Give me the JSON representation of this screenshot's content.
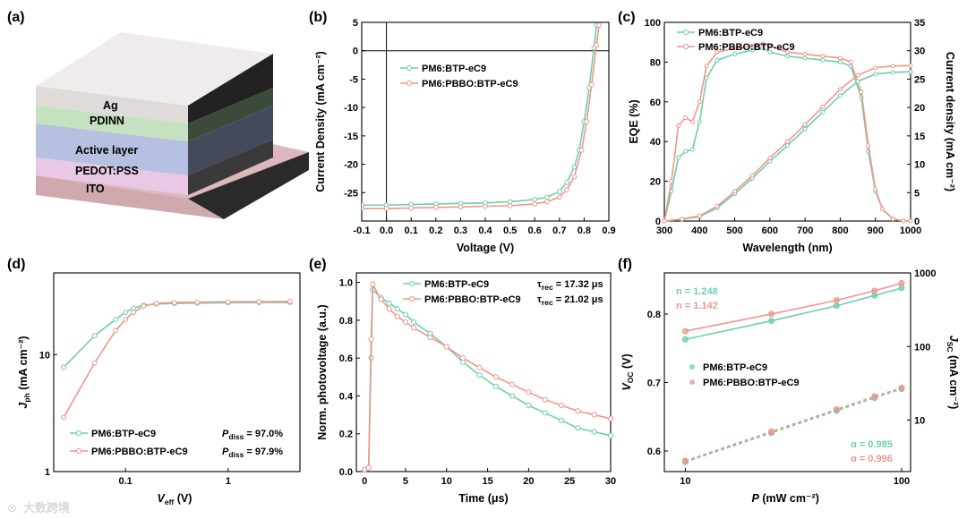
{
  "colors": {
    "green": "#6ccfae",
    "pink": "#f0968c"
  },
  "watermark": "大数跨境",
  "panels": {
    "a": {
      "tag": "(a)",
      "layers": [
        "Ag",
        "PDINN",
        "Active layer",
        "PEDOT:PSS",
        "ITO"
      ]
    },
    "b": {
      "tag": "(b)"
    },
    "c": {
      "tag": "(c)"
    },
    "d": {
      "tag": "(d)",
      "pdiss_green": "= 97.0%",
      "pdiss_pink": "= 97.9%",
      "pdiss_symbol": "P",
      "pdiss_sub": "diss"
    },
    "e": {
      "tag": "(e)",
      "tau_symbol": "τ",
      "tau_sub": "rec",
      "tau_green": "= 17.32 μs",
      "tau_pink": "= 21.02 μs"
    },
    "f": {
      "tag": "(f)",
      "n_green": "n = 1.248",
      "n_pink": "n = 1.142",
      "alpha_green": "α = 0.985",
      "alpha_pink": "α = 0.996"
    }
  },
  "chart_data": [
    {
      "id": "b",
      "type": "line",
      "xlabel": "Voltage (V)",
      "ylabel": "Current Density (mA cm⁻²)",
      "xlim": [
        -0.1,
        0.9
      ],
      "ylim": [
        -30,
        5
      ],
      "xticks": [
        "-0.1",
        "0.0",
        "0.1",
        "0.2",
        "0.3",
        "0.4",
        "0.5",
        "0.6",
        "0.7",
        "0.8",
        "0.9"
      ],
      "yticks": [
        "5",
        "0",
        "-5",
        "-10",
        "-15",
        "-20",
        "-25"
      ],
      "series": [
        {
          "name": "PM6:BTP-eC9",
          "color": "green",
          "x": [
            -0.1,
            0.0,
            0.1,
            0.2,
            0.3,
            0.4,
            0.5,
            0.6,
            0.65,
            0.7,
            0.73,
            0.76,
            0.78,
            0.8,
            0.82,
            0.84,
            0.85
          ],
          "y": [
            -27.2,
            -27.2,
            -27.1,
            -27.0,
            -26.9,
            -26.8,
            -26.6,
            -26.2,
            -25.8,
            -24.8,
            -23.2,
            -20.5,
            -17.5,
            -12.5,
            -6.5,
            0.5,
            4.5
          ]
        },
        {
          "name": "PM6:PBBO:BTP-eC9",
          "color": "pink",
          "x": [
            -0.1,
            0.0,
            0.1,
            0.2,
            0.3,
            0.4,
            0.5,
            0.6,
            0.65,
            0.7,
            0.73,
            0.76,
            0.79,
            0.81,
            0.83,
            0.85,
            0.86
          ],
          "y": [
            -27.8,
            -27.8,
            -27.7,
            -27.6,
            -27.5,
            -27.4,
            -27.3,
            -27.0,
            -26.6,
            -25.8,
            -24.5,
            -22.2,
            -17.5,
            -12.5,
            -6.0,
            1.0,
            4.5
          ]
        }
      ]
    },
    {
      "id": "c",
      "type": "line",
      "xlabel": "Wavelength (nm)",
      "ylabel": "EQE (%)",
      "ylabel_right": "Current density (mA cm⁻²)",
      "xlim": [
        300,
        1000
      ],
      "ylim": [
        0,
        100
      ],
      "ylim_right": [
        0,
        35
      ],
      "xticks": [
        "300",
        "400",
        "500",
        "600",
        "700",
        "800",
        "900",
        "1000"
      ],
      "yticks": [
        "0",
        "20",
        "40",
        "60",
        "80",
        "100"
      ],
      "yticks_right": [
        "0",
        "5",
        "10",
        "15",
        "20",
        "25",
        "30",
        "35"
      ],
      "series": [
        {
          "name": "PM6:BTP-eC9",
          "color": "green",
          "x": [
            300,
            320,
            340,
            360,
            380,
            400,
            420,
            450,
            500,
            550,
            580,
            600,
            650,
            700,
            750,
            800,
            830,
            860,
            880,
            900,
            920,
            950,
            980,
            1000
          ],
          "y": [
            0,
            15,
            32,
            35,
            36,
            50,
            72,
            81,
            84,
            86,
            87,
            85,
            83,
            82,
            81,
            80,
            78,
            62,
            35,
            15,
            6,
            1,
            0,
            0
          ]
        },
        {
          "name": "PM6:PBBO:BTP-eC9",
          "color": "pink",
          "x": [
            300,
            320,
            340,
            360,
            380,
            400,
            420,
            450,
            500,
            550,
            580,
            600,
            650,
            700,
            750,
            800,
            830,
            860,
            880,
            900,
            920,
            950,
            980,
            1000
          ],
          "y": [
            0,
            20,
            48,
            52,
            50,
            60,
            78,
            85,
            87,
            88,
            89,
            88,
            85,
            84,
            83,
            82,
            80,
            65,
            38,
            16,
            6,
            1,
            0,
            0
          ]
        },
        {
          "name": "PM6:BTP-eC9 Jsc integral",
          "color": "green",
          "axis": "right",
          "x": [
            300,
            350,
            400,
            450,
            500,
            550,
            600,
            650,
            700,
            750,
            800,
            850,
            900,
            950,
            1000
          ],
          "y": [
            0,
            0.3,
            0.8,
            2.3,
            4.8,
            7.5,
            10.5,
            13.3,
            16.2,
            19.2,
            22.1,
            24.6,
            25.9,
            26.2,
            26.3
          ]
        },
        {
          "name": "PM6:PBBO:BTP-eC9 Jsc integral",
          "color": "pink",
          "axis": "right",
          "x": [
            300,
            350,
            400,
            450,
            500,
            550,
            600,
            650,
            700,
            750,
            800,
            850,
            900,
            950,
            1000
          ],
          "y": [
            0,
            0.35,
            0.9,
            2.6,
            5.2,
            8.0,
            11.1,
            14.0,
            17.0,
            20.1,
            23.2,
            25.7,
            27.0,
            27.3,
            27.4
          ]
        }
      ]
    },
    {
      "id": "d",
      "type": "line",
      "xlabel_symbol": "V",
      "xlabel_sub": "eff",
      "xlabel_unit": " (V)",
      "ylabel_symbol": "J",
      "ylabel_sub": "ph",
      "ylabel_unit": " (mA cm⁻²)",
      "xscale": "log",
      "yscale": "log",
      "xlim": [
        0.02,
        5
      ],
      "ylim": [
        1,
        50
      ],
      "xticks": [
        "0.1",
        "1"
      ],
      "yticks": [
        "1",
        "10"
      ],
      "series": [
        {
          "name": "PM6:BTP-eC9",
          "color": "green",
          "x": [
            0.025,
            0.05,
            0.08,
            0.1,
            0.12,
            0.15,
            0.2,
            0.3,
            0.5,
            1,
            2,
            4
          ],
          "y": [
            7.8,
            14.5,
            20,
            23,
            25,
            26.5,
            27.1,
            27.4,
            27.6,
            27.8,
            27.9,
            28
          ]
        },
        {
          "name": "PM6:PBBO:BTP-eC9",
          "color": "pink",
          "x": [
            0.025,
            0.05,
            0.08,
            0.1,
            0.12,
            0.15,
            0.2,
            0.3,
            0.5,
            1,
            2,
            4
          ],
          "y": [
            2.9,
            8.5,
            16,
            20,
            23,
            26,
            27.5,
            27.9,
            28.1,
            28.3,
            28.4,
            28.5
          ]
        }
      ]
    },
    {
      "id": "e",
      "type": "line",
      "xlabel": "Time (μs)",
      "ylabel": "Norm. photovoltage (a.u.)",
      "xlim": [
        -1,
        30
      ],
      "ylim": [
        0,
        1.05
      ],
      "xticks": [
        "0",
        "5",
        "10",
        "15",
        "20",
        "25",
        "30"
      ],
      "yticks": [
        "0.0",
        "0.2",
        "0.4",
        "0.6",
        "0.8",
        "1.0"
      ],
      "series": [
        {
          "name": "PM6:BTP-eC9",
          "color": "green",
          "x": [
            0,
            0.5,
            0.8,
            1,
            2,
            3,
            4,
            5,
            6,
            8,
            10,
            12,
            14,
            16,
            18,
            20,
            22,
            24,
            26,
            28,
            30
          ],
          "y": [
            0.01,
            0.02,
            0.6,
            0.96,
            0.92,
            0.89,
            0.86,
            0.83,
            0.79,
            0.73,
            0.66,
            0.58,
            0.51,
            0.45,
            0.4,
            0.35,
            0.31,
            0.27,
            0.23,
            0.21,
            0.19
          ]
        },
        {
          "name": "PM6:PBBO:BTP-eC9",
          "color": "pink",
          "x": [
            0,
            0.5,
            0.8,
            1,
            2,
            3,
            4,
            5,
            6,
            8,
            10,
            12,
            14,
            16,
            18,
            20,
            22,
            24,
            26,
            28,
            30
          ],
          "y": [
            0.01,
            0.02,
            0.7,
            0.99,
            0.91,
            0.86,
            0.82,
            0.79,
            0.76,
            0.71,
            0.66,
            0.6,
            0.55,
            0.5,
            0.46,
            0.42,
            0.38,
            0.35,
            0.32,
            0.3,
            0.28
          ]
        }
      ]
    },
    {
      "id": "f",
      "type": "scatter",
      "xlabel_symbol": "P",
      "xlabel_unit": " (mW cm⁻²)",
      "ylabel_symbol": "V",
      "ylabel_sub": "OC",
      "ylabel_unit": " (V)",
      "ylabel_right_symbol": "J",
      "ylabel_right_sub": "SC",
      "ylabel_right_unit": " (mA cm⁻²)",
      "xscale": "log",
      "xlim": [
        8,
        110
      ],
      "ylim": [
        0.57,
        0.86
      ],
      "yscale_right": "log",
      "ylim_right": [
        2,
        1000
      ],
      "xticks": [
        "10",
        "100"
      ],
      "yticks": [
        "0.6",
        "0.7",
        "0.8"
      ],
      "yticks_right": [
        "10",
        "100",
        "1000"
      ],
      "series": [
        {
          "name": "PM6:BTP-eC9",
          "color": "green",
          "kind": "voc",
          "x": [
            10,
            25,
            50,
            75,
            100
          ],
          "y": [
            0.763,
            0.79,
            0.812,
            0.827,
            0.838
          ]
        },
        {
          "name": "PM6:PBBO:BTP-eC9",
          "color": "pink",
          "kind": "voc",
          "x": [
            10,
            25,
            50,
            75,
            100
          ],
          "y": [
            0.775,
            0.8,
            0.82,
            0.834,
            0.845
          ]
        },
        {
          "name": "PM6:BTP-eC9",
          "color": "green",
          "kind": "jsc",
          "x": [
            10,
            25,
            50,
            75,
            100
          ],
          "y": [
            2.7,
            6.7,
            13.4,
            20,
            26.5
          ]
        },
        {
          "name": "PM6:PBBO:BTP-eC9",
          "color": "pink",
          "kind": "jsc",
          "x": [
            10,
            25,
            50,
            75,
            100
          ],
          "y": [
            2.8,
            7,
            14,
            21,
            27.5
          ]
        }
      ]
    }
  ]
}
